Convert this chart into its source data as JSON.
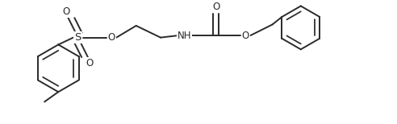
{
  "background": "#ffffff",
  "line_color": "#2a2a2a",
  "line_width": 1.4,
  "font_size": 8.5,
  "fig_width": 4.92,
  "fig_height": 1.54,
  "dpi": 100,
  "xlim": [
    0,
    9.8
  ],
  "ylim": [
    0,
    3.08
  ]
}
